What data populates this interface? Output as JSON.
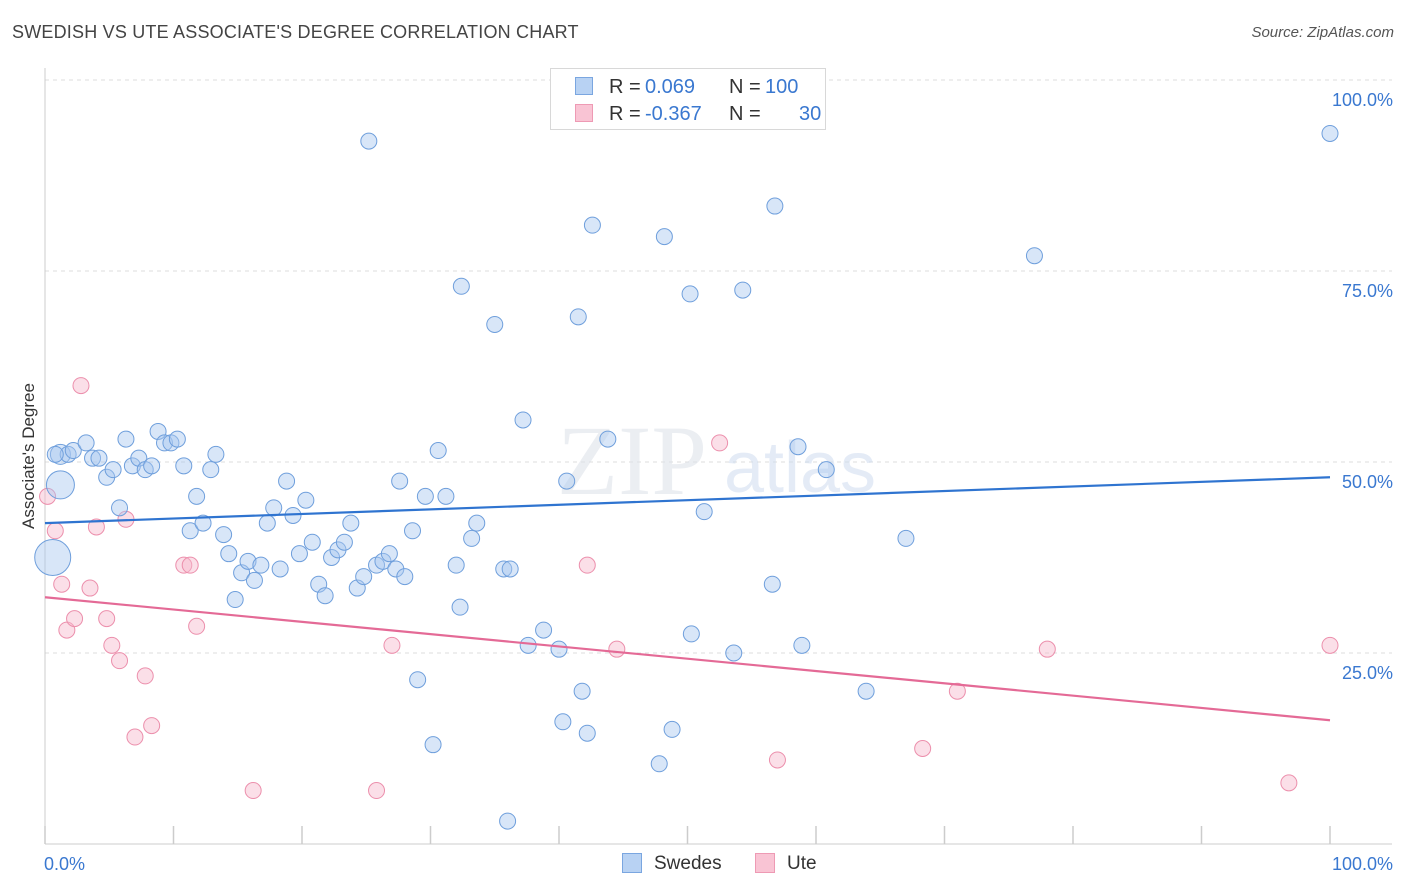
{
  "title": "SWEDISH VS UTE ASSOCIATE'S DEGREE CORRELATION CHART",
  "source": "Source: ZipAtlas.com",
  "watermark": "ZIPatlas",
  "colors": {
    "swedes_fill": "#a9c8f0",
    "swedes_stroke": "#6f9fdc",
    "swedes_line": "#2f74d0",
    "ute_fill": "#f7b8cb",
    "ute_stroke": "#ec8fac",
    "ute_line": "#e46a96",
    "axis_label": "#3a78d0",
    "grid": "#dddddd"
  },
  "legend": {
    "rows": [
      {
        "r_label": "R =",
        "r_value": "0.069",
        "n_label": "N =",
        "n_value": "100"
      },
      {
        "r_label": "R =",
        "r_value": "-0.367",
        "n_label": "N =",
        "n_value": "30"
      }
    ]
  },
  "bottom_legend": {
    "swedes": "Swedes",
    "ute": "Ute"
  },
  "chart_data": {
    "type": "scatter",
    "title": "SWEDISH VS UTE ASSOCIATE'S DEGREE CORRELATION CHART",
    "xlabel": "",
    "ylabel": "Associate's Degree",
    "xlim": [
      0,
      100
    ],
    "ylim": [
      0,
      100
    ],
    "x_tick_labels": [
      "0.0%",
      "100.0%"
    ],
    "y_tick_labels": [
      "25.0%",
      "50.0%",
      "75.0%",
      "100.0%"
    ],
    "y_ticks": [
      25,
      50,
      75,
      100
    ],
    "grid": true,
    "legend_position": "top-center",
    "series": [
      {
        "name": "Swedes",
        "r": 0.069,
        "n": 100,
        "trend": [
          [
            0,
            42.0
          ],
          [
            100,
            48.0
          ]
        ],
        "points": [
          [
            1.2,
            47.0,
            14
          ],
          [
            0.6,
            37.5,
            18
          ],
          [
            1.2,
            51.0,
            10
          ],
          [
            1.8,
            51.0,
            8
          ],
          [
            2.2,
            51.5,
            8
          ],
          [
            3.2,
            52.5,
            8
          ],
          [
            3.7,
            50.5,
            8
          ],
          [
            4.2,
            50.5,
            8
          ],
          [
            4.8,
            48.0,
            8
          ],
          [
            5.3,
            49.0,
            8
          ],
          [
            5.8,
            44.0,
            8
          ],
          [
            6.3,
            53.0,
            8
          ],
          [
            6.8,
            49.5,
            8
          ],
          [
            7.3,
            50.5,
            8
          ],
          [
            7.8,
            49.0,
            8
          ],
          [
            8.3,
            49.5,
            8
          ],
          [
            8.8,
            54.0,
            8
          ],
          [
            9.3,
            52.5,
            8
          ],
          [
            9.8,
            52.5,
            8
          ],
          [
            10.3,
            53.0,
            8
          ],
          [
            10.8,
            49.5,
            8
          ],
          [
            11.3,
            41.0,
            8
          ],
          [
            11.8,
            45.5,
            8
          ],
          [
            12.3,
            42.0,
            8
          ],
          [
            12.9,
            49.0,
            8
          ],
          [
            13.3,
            51.0,
            8
          ],
          [
            13.9,
            40.5,
            8
          ],
          [
            14.3,
            38.0,
            8
          ],
          [
            14.8,
            32.0,
            8
          ],
          [
            15.3,
            35.5,
            8
          ],
          [
            15.8,
            37.0,
            8
          ],
          [
            16.3,
            34.5,
            8
          ],
          [
            16.8,
            36.5,
            8
          ],
          [
            17.3,
            42.0,
            8
          ],
          [
            17.8,
            44.0,
            8
          ],
          [
            18.3,
            36.0,
            8
          ],
          [
            18.8,
            47.5,
            8
          ],
          [
            19.3,
            43.0,
            8
          ],
          [
            19.8,
            38.0,
            8
          ],
          [
            20.3,
            45.0,
            8
          ],
          [
            20.8,
            39.5,
            8
          ],
          [
            21.3,
            34.0,
            8
          ],
          [
            21.8,
            32.5,
            8
          ],
          [
            22.3,
            37.5,
            8
          ],
          [
            22.8,
            38.5,
            8
          ],
          [
            23.3,
            39.5,
            8
          ],
          [
            23.8,
            42.0,
            8
          ],
          [
            24.3,
            33.5,
            8
          ],
          [
            24.8,
            35.0,
            8
          ],
          [
            25.2,
            92.0,
            8
          ],
          [
            25.8,
            36.5,
            8
          ],
          [
            26.3,
            37.0,
            8
          ],
          [
            26.8,
            38.0,
            8
          ],
          [
            27.3,
            36.0,
            8
          ],
          [
            27.6,
            47.5,
            8
          ],
          [
            28.0,
            35.0,
            8
          ],
          [
            28.6,
            41.0,
            8
          ],
          [
            29.0,
            21.5,
            8
          ],
          [
            29.6,
            45.5,
            8
          ],
          [
            30.2,
            13.0,
            8
          ],
          [
            30.6,
            51.5,
            8
          ],
          [
            31.2,
            45.5,
            8
          ],
          [
            32.0,
            36.5,
            8
          ],
          [
            32.3,
            31.0,
            8
          ],
          [
            32.4,
            73.0,
            8
          ],
          [
            33.2,
            40.0,
            8
          ],
          [
            33.6,
            42.0,
            8
          ],
          [
            35.0,
            68.0,
            8
          ],
          [
            35.7,
            36.0,
            8
          ],
          [
            36.0,
            3.0,
            8
          ],
          [
            36.2,
            36.0,
            8
          ],
          [
            37.2,
            55.5,
            8
          ],
          [
            37.6,
            26.0,
            8
          ],
          [
            38.8,
            28.0,
            8
          ],
          [
            40.0,
            25.5,
            8
          ],
          [
            40.3,
            16.0,
            8
          ],
          [
            40.6,
            47.5,
            8
          ],
          [
            41.5,
            69.0,
            8
          ],
          [
            41.8,
            20.0,
            8
          ],
          [
            42.2,
            14.5,
            8
          ],
          [
            42.6,
            81.0,
            8
          ],
          [
            43.8,
            53.0,
            8
          ],
          [
            47.8,
            10.5,
            8
          ],
          [
            48.2,
            79.5,
            8
          ],
          [
            48.8,
            15.0,
            8
          ],
          [
            50.2,
            72.0,
            8
          ],
          [
            50.3,
            27.5,
            8
          ],
          [
            51.3,
            43.5,
            8
          ],
          [
            53.6,
            25.0,
            8
          ],
          [
            54.3,
            72.5,
            8
          ],
          [
            56.6,
            34.0,
            8
          ],
          [
            56.8,
            83.5,
            8
          ],
          [
            58.6,
            52.0,
            8
          ],
          [
            58.9,
            26.0,
            8
          ],
          [
            60.8,
            49.0,
            8
          ],
          [
            63.9,
            20.0,
            8
          ],
          [
            67.0,
            40.0,
            8
          ],
          [
            77.0,
            77.0,
            8
          ],
          [
            100.0,
            93.0,
            8
          ],
          [
            0.8,
            51.0,
            8
          ]
        ]
      },
      {
        "name": "Ute",
        "r": -0.367,
        "n": 30,
        "trend": [
          [
            0,
            32.3
          ],
          [
            100,
            16.2
          ]
        ],
        "points": [
          [
            0.2,
            45.5,
            8
          ],
          [
            0.8,
            41.0,
            8
          ],
          [
            1.3,
            34.0,
            8
          ],
          [
            1.7,
            28.0,
            8
          ],
          [
            2.3,
            29.5,
            8
          ],
          [
            2.8,
            60.0,
            8
          ],
          [
            3.5,
            33.5,
            8
          ],
          [
            4.0,
            41.5,
            8
          ],
          [
            4.8,
            29.5,
            8
          ],
          [
            5.2,
            26.0,
            8
          ],
          [
            5.8,
            24.0,
            8
          ],
          [
            6.3,
            42.5,
            8
          ],
          [
            7.0,
            14.0,
            8
          ],
          [
            7.8,
            22.0,
            8
          ],
          [
            8.3,
            15.5,
            8
          ],
          [
            10.8,
            36.5,
            8
          ],
          [
            11.3,
            36.5,
            8
          ],
          [
            11.8,
            28.5,
            8
          ],
          [
            16.2,
            7.0,
            8
          ],
          [
            25.8,
            7.0,
            8
          ],
          [
            27.0,
            26.0,
            8
          ],
          [
            42.2,
            36.5,
            8
          ],
          [
            44.5,
            25.5,
            8
          ],
          [
            52.5,
            52.5,
            8
          ],
          [
            57.0,
            11.0,
            8
          ],
          [
            68.3,
            12.5,
            8
          ],
          [
            71.0,
            20.0,
            8
          ],
          [
            78.0,
            25.5,
            8
          ],
          [
            96.8,
            8.0,
            8
          ],
          [
            100.0,
            26.0,
            8
          ]
        ]
      }
    ]
  }
}
